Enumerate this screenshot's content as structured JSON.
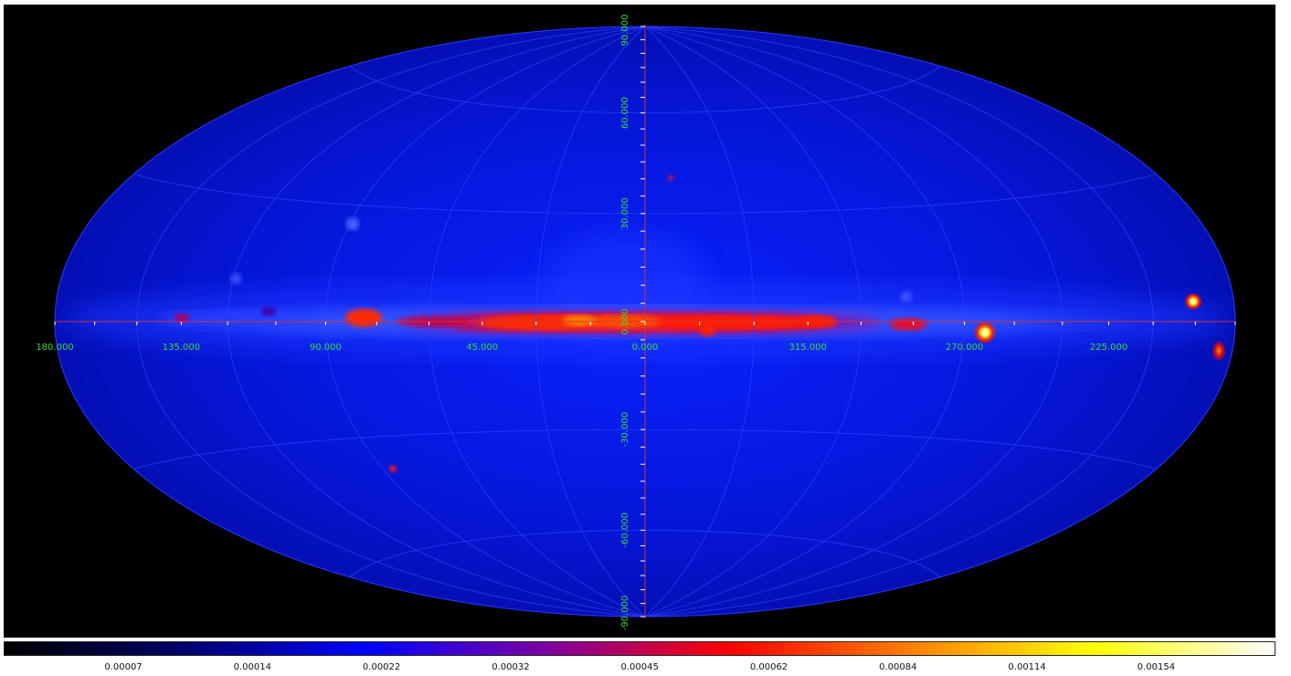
{
  "map": {
    "projection": "Aitoff/Hammer all-sky",
    "lon_labels": [
      {
        "text": "180.000",
        "lon": 180
      },
      {
        "text": "135.000",
        "lon": 135
      },
      {
        "text": "90.000",
        "lon": 90
      },
      {
        "text": "45.000",
        "lon": 45
      },
      {
        "text": "0.000",
        "lon": 0
      },
      {
        "text": "315.000",
        "lon": -45
      },
      {
        "text": "270.000",
        "lon": -90
      },
      {
        "text": "225.000",
        "lon": -135
      }
    ],
    "lat_labels": [
      {
        "text": "90.000",
        "lat": 90
      },
      {
        "text": "60.000",
        "lat": 60
      },
      {
        "text": "30.000",
        "lat": 30
      },
      {
        "text": "0.000",
        "lat": 0
      },
      {
        "text": "-30.000",
        "lat": -30
      },
      {
        "text": "-60.000",
        "lat": -60
      },
      {
        "text": "-90.000",
        "lat": -90
      }
    ],
    "colors": {
      "background": "#000000",
      "sky": "#0a14d8",
      "grid": "#2c3cff",
      "axis": "#d0303a",
      "label": "#33dd33"
    }
  },
  "colorbar": {
    "gradient": [
      "#000000",
      "#00006e",
      "#0000ff",
      "#8000a0",
      "#ff0000",
      "#ff8000",
      "#ffff00",
      "#ffffff"
    ],
    "labels": [
      "0.00007",
      "0.00014",
      "0.00022",
      "0.00032",
      "0.00045",
      "0.00062",
      "0.00084",
      "0.00114",
      "0.00154"
    ]
  }
}
